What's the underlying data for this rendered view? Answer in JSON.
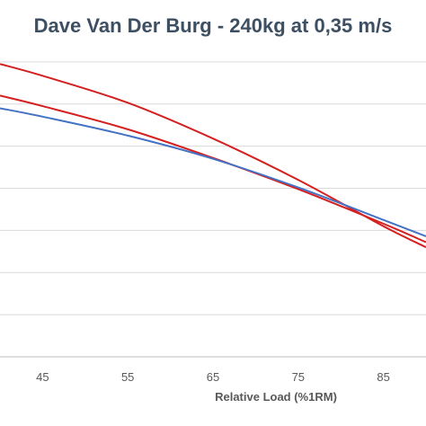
{
  "chart_data": {
    "type": "line",
    "title": "Dave Van Der Burg - 240kg at 0,35 m/s",
    "xlabel": "Relative Load (%1RM)",
    "ylabel": "",
    "x_ticks": [
      45,
      55,
      65,
      75,
      85
    ],
    "xlim": [
      40,
      90
    ],
    "ylim": [
      0,
      8
    ],
    "grid": true,
    "series": [
      {
        "color": "#d42020",
        "x": [
          40,
          45,
          55,
          65,
          75,
          85,
          90
        ],
        "y": [
          6.95,
          6.67,
          6.03,
          5.18,
          4.2,
          3.1,
          2.6
        ]
      },
      {
        "color": "#d42020",
        "x": [
          40,
          45,
          55,
          65,
          75,
          85,
          90
        ],
        "y": [
          6.2,
          5.95,
          5.4,
          4.72,
          3.98,
          3.16,
          2.72
        ]
      },
      {
        "color": "#4472c4",
        "x": [
          40,
          45,
          55,
          65,
          75,
          85,
          90
        ],
        "y": [
          5.9,
          5.7,
          5.25,
          4.7,
          4.02,
          3.25,
          2.86
        ]
      }
    ]
  }
}
